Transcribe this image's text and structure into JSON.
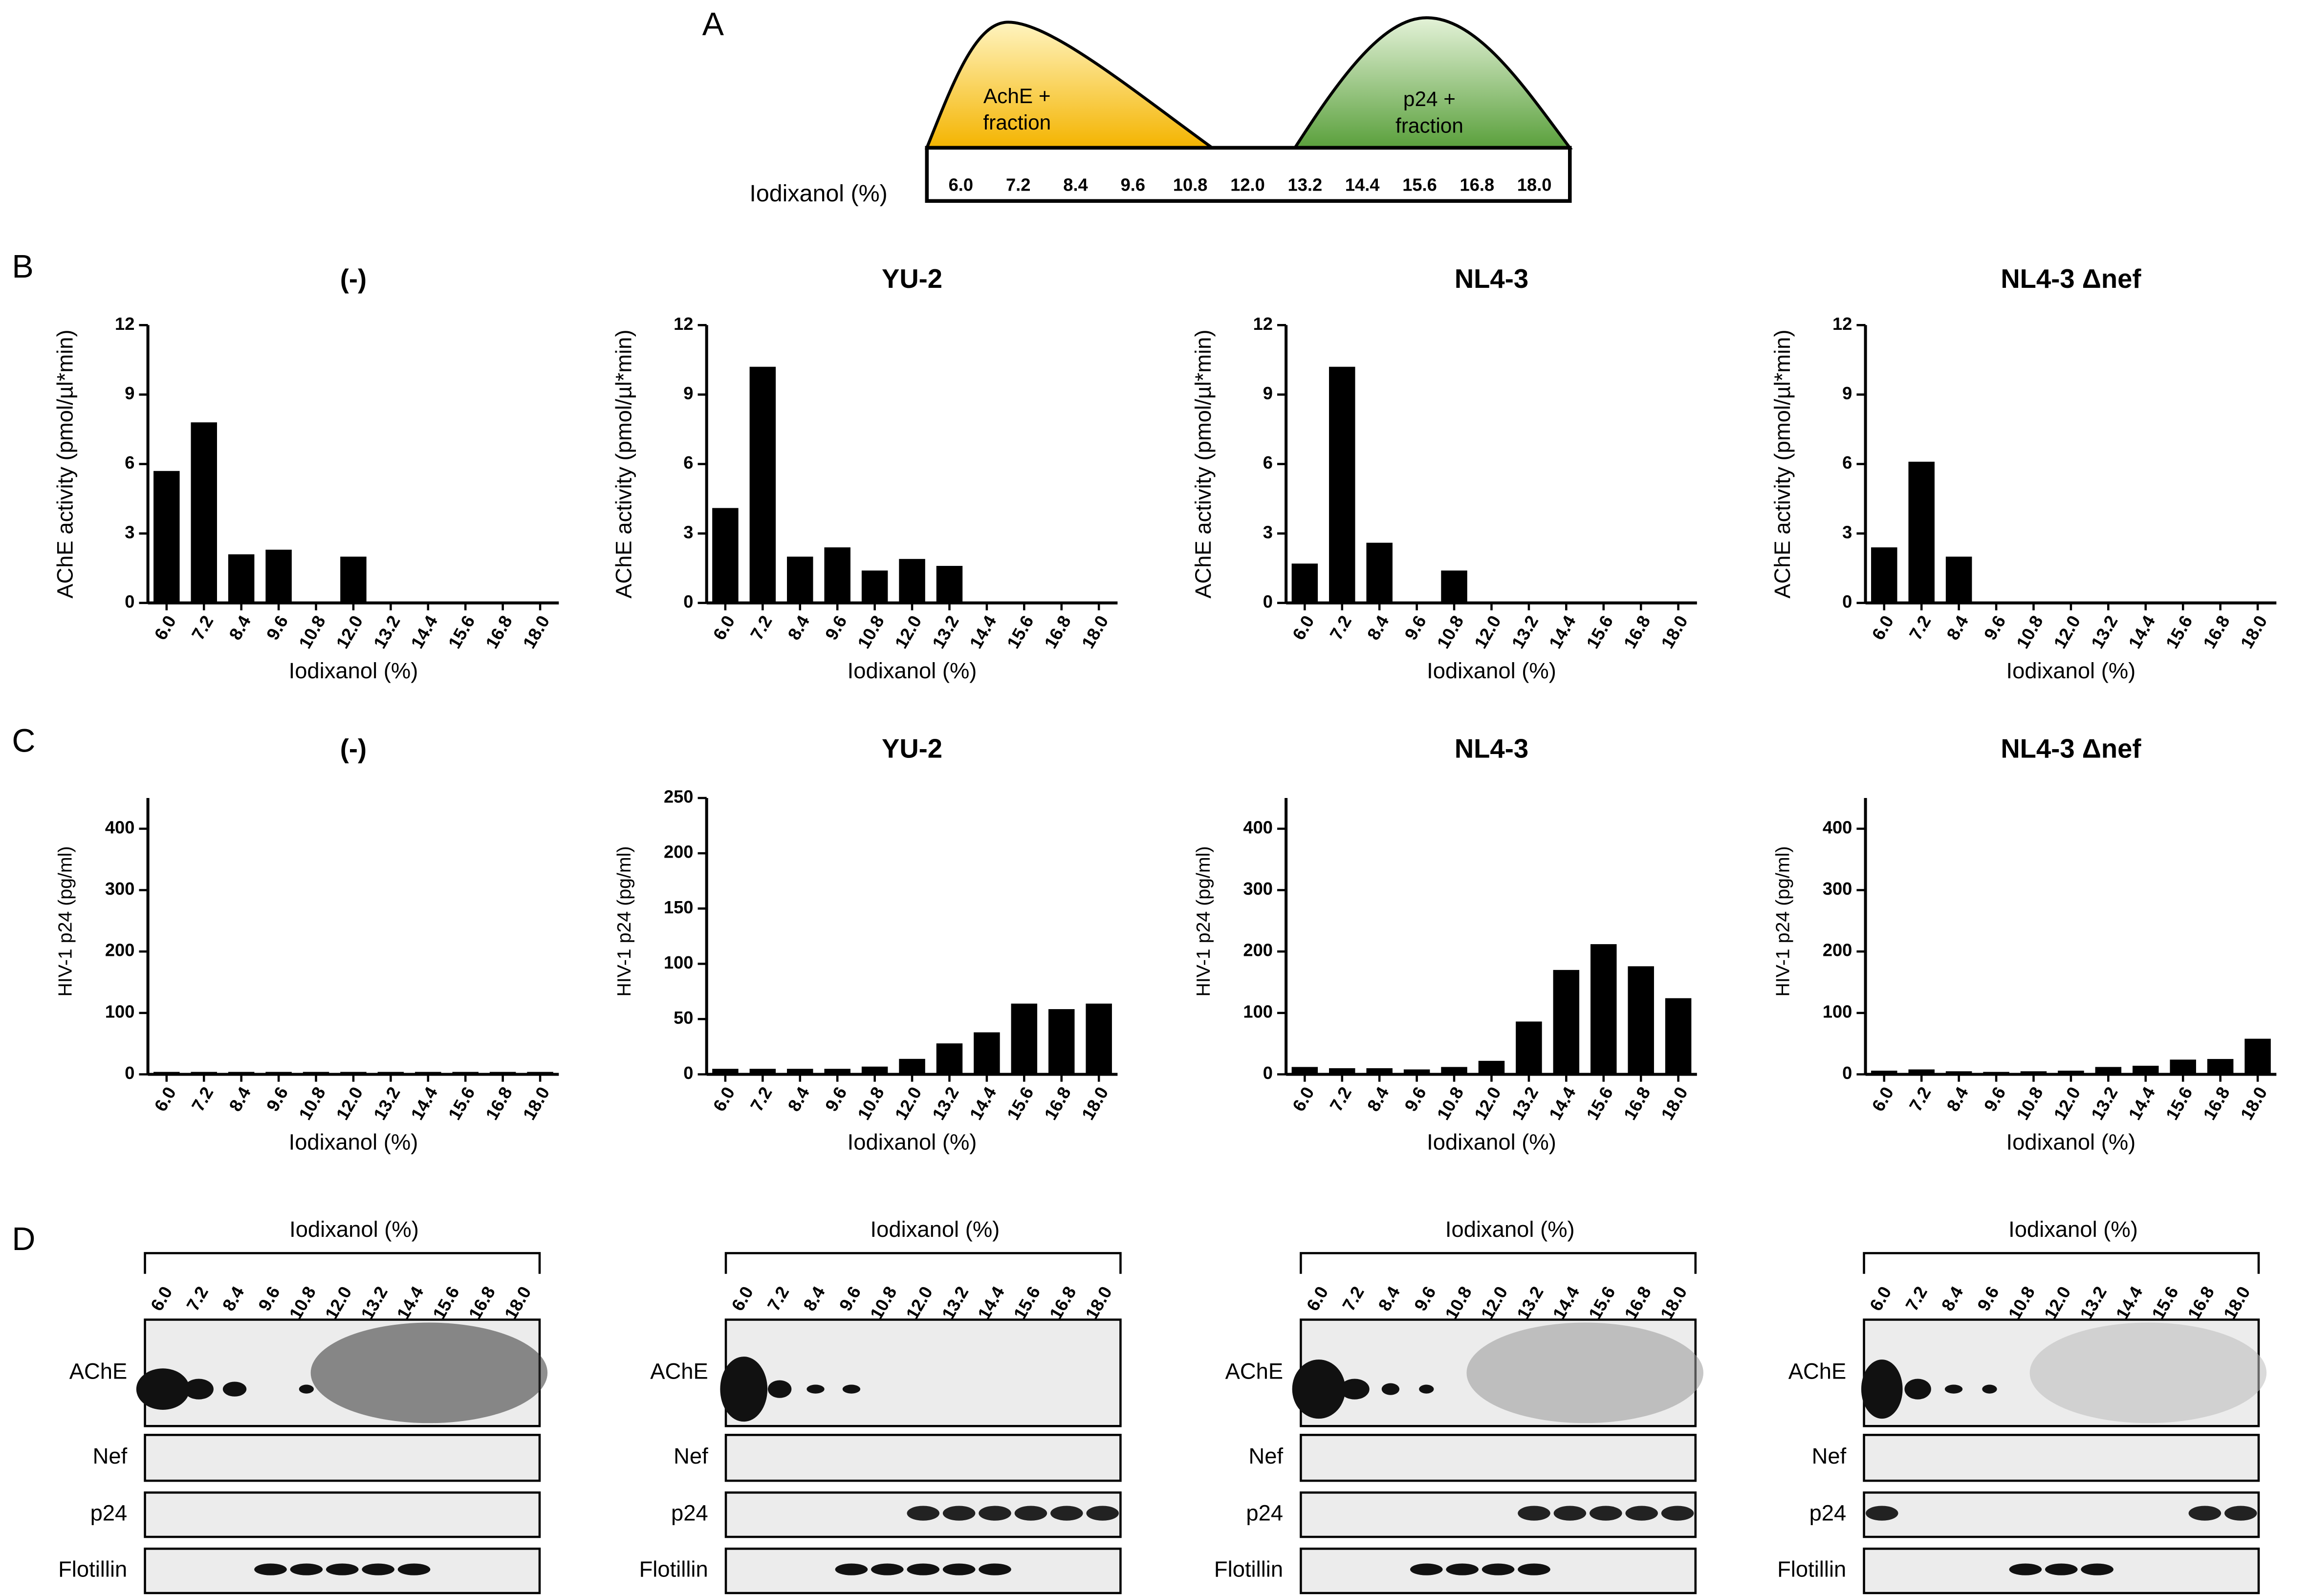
{
  "panel_labels": [
    "A",
    "B",
    "C",
    "D"
  ],
  "panel_a": {
    "axis_label": "Iodixanol (%)",
    "fractions": [
      "6.0",
      "7.2",
      "8.4",
      "9.6",
      "10.8",
      "12.0",
      "13.2",
      "14.4",
      "15.6",
      "16.8",
      "18.0"
    ],
    "left_hump": [
      "AchE +",
      "fraction"
    ],
    "right_hump": [
      "p24 +",
      "fraction"
    ]
  },
  "panel_d": {
    "header": "Iodixanol (%)",
    "lanes": [
      "6.0",
      "7.2",
      "8.4",
      "9.6",
      "10.8",
      "12.0",
      "13.2",
      "14.4",
      "15.6",
      "16.8",
      "18.0"
    ],
    "rows": [
      "AChE",
      "Nef",
      "p24",
      "Flotillin"
    ]
  },
  "chart_data": [
    {
      "type": "bar",
      "title": "(-)",
      "x_label": "Iodixanol (%)",
      "y_label": "AChE activity (pmol/µl*min)",
      "color": "#000000",
      "categories": [
        "6.0",
        "7.2",
        "8.4",
        "9.6",
        "10.8",
        "12.0",
        "13.2",
        "14.4",
        "15.6",
        "16.8",
        "18.0"
      ],
      "values": [
        5.7,
        7.8,
        2.1,
        2.3,
        0,
        2.0,
        0,
        0,
        0,
        0,
        0
      ],
      "ylim": [
        0,
        12
      ],
      "yticks": [
        0,
        3,
        6,
        9,
        12
      ]
    },
    {
      "type": "bar",
      "title": "YU-2",
      "x_label": "Iodixanol (%)",
      "y_label": "AChE activity (pmol/µl*min)",
      "color": "#000000",
      "categories": [
        "6.0",
        "7.2",
        "8.4",
        "9.6",
        "10.8",
        "12.0",
        "13.2",
        "14.4",
        "15.6",
        "16.8",
        "18.0"
      ],
      "values": [
        4.1,
        10.2,
        2.0,
        2.4,
        1.4,
        1.9,
        1.6,
        0,
        0,
        0,
        0
      ],
      "ylim": [
        0,
        12
      ],
      "yticks": [
        0,
        3,
        6,
        9,
        12
      ]
    },
    {
      "type": "bar",
      "title": "NL4-3",
      "x_label": "Iodixanol (%)",
      "y_label": "AChE activity (pmol/µl*min)",
      "color": "#000000",
      "categories": [
        "6.0",
        "7.2",
        "8.4",
        "9.6",
        "10.8",
        "12.0",
        "13.2",
        "14.4",
        "15.6",
        "16.8",
        "18.0"
      ],
      "values": [
        1.7,
        10.2,
        2.6,
        0,
        1.4,
        0,
        0,
        0,
        0,
        0,
        0
      ],
      "ylim": [
        0,
        12
      ],
      "yticks": [
        0,
        3,
        6,
        9,
        12
      ]
    },
    {
      "type": "bar",
      "title": "NL4-3 Δnef",
      "x_label": "Iodixanol (%)",
      "y_label": "AChE activity (pmol/µl*min)",
      "color": "#000000",
      "categories": [
        "6.0",
        "7.2",
        "8.4",
        "9.6",
        "10.8",
        "12.0",
        "13.2",
        "14.4",
        "15.6",
        "16.8",
        "18.0"
      ],
      "values": [
        2.4,
        6.1,
        2.0,
        0,
        0,
        0,
        0,
        0,
        0,
        0,
        0
      ],
      "ylim": [
        0,
        12
      ],
      "yticks": [
        0,
        3,
        6,
        9,
        12
      ]
    },
    {
      "type": "bar",
      "title": "(-)",
      "x_label": "Iodixanol (%)",
      "y_label": "HIV-1 p24 (pg/ml)",
      "color": "#000000",
      "categories": [
        "6.0",
        "7.2",
        "8.4",
        "9.6",
        "10.8",
        "12.0",
        "13.2",
        "14.4",
        "15.6",
        "16.8",
        "18.0"
      ],
      "values": [
        4,
        4,
        4,
        4,
        4,
        4,
        4,
        4,
        4,
        4,
        4
      ],
      "ylim": [
        0,
        450
      ],
      "yticks": [
        0,
        100,
        200,
        300,
        400
      ]
    },
    {
      "type": "bar",
      "title": "YU-2",
      "x_label": "Iodixanol (%)",
      "y_label": "HIV-1 p24 (pg/ml)",
      "color": "#000000",
      "categories": [
        "6.0",
        "7.2",
        "8.4",
        "9.6",
        "10.8",
        "12.0",
        "13.2",
        "14.4",
        "15.6",
        "16.8",
        "18.0"
      ],
      "values": [
        5,
        5,
        5,
        5,
        7,
        14,
        28,
        38,
        64,
        59,
        64
      ],
      "ylim": [
        0,
        250
      ],
      "yticks": [
        0,
        50,
        100,
        150,
        200,
        250
      ]
    },
    {
      "type": "bar",
      "title": "NL4-3",
      "x_label": "Iodixanol (%)",
      "y_label": "HIV-1 p24 (pg/ml)",
      "color": "#000000",
      "categories": [
        "6.0",
        "7.2",
        "8.4",
        "9.6",
        "10.8",
        "12.0",
        "13.2",
        "14.4",
        "15.6",
        "16.8",
        "18.0"
      ],
      "values": [
        12,
        10,
        10,
        8,
        12,
        22,
        86,
        170,
        212,
        176,
        124
      ],
      "ylim": [
        0,
        450
      ],
      "yticks": [
        0,
        100,
        200,
        300,
        400
      ]
    },
    {
      "type": "bar",
      "title": "NL4-3 Δnef",
      "x_label": "Iodixanol (%)",
      "y_label": "HIV-1 p24 (pg/ml)",
      "color": "#000000",
      "categories": [
        "6.0",
        "7.2",
        "8.4",
        "9.6",
        "10.8",
        "12.0",
        "13.2",
        "14.4",
        "15.6",
        "16.8",
        "18.0"
      ],
      "values": [
        6,
        8,
        5,
        4,
        5,
        6,
        12,
        14,
        24,
        25,
        58
      ],
      "ylim": [
        0,
        450
      ],
      "yticks": [
        0,
        100,
        200,
        300,
        400
      ]
    }
  ]
}
